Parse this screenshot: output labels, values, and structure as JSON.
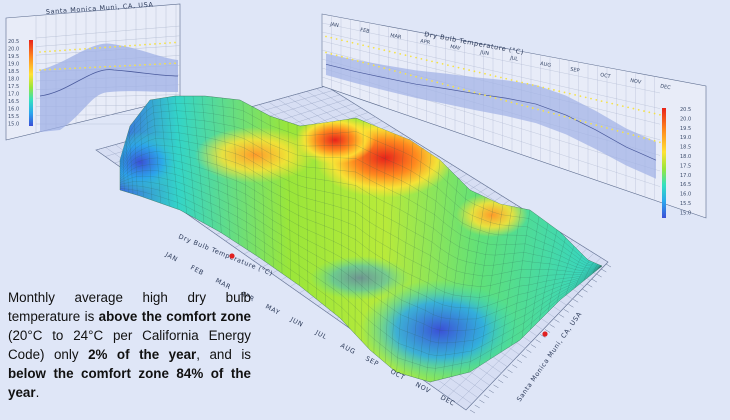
{
  "chart_data": {
    "type": "surface",
    "title": "",
    "location": "Santa Monica Muni, CA, USA",
    "axis_label": "Dry Bulb Temperature (°C)",
    "months": [
      "JAN",
      "FEB",
      "MAR",
      "APR",
      "MAY",
      "JUN",
      "JUL",
      "AUG",
      "SEP",
      "OCT",
      "NOV",
      "DEC"
    ],
    "legend_values": [
      "20.5",
      "20.0",
      "19.5",
      "19.0",
      "18.5",
      "18.0",
      "17.5",
      "17.0",
      "16.5",
      "16.0",
      "15.5",
      "15.0"
    ],
    "colorscale": [
      "#3b4fd6",
      "#2aa6ee",
      "#33e0c0",
      "#9ae63a",
      "#ffe234",
      "#ff8a1e",
      "#e8231a"
    ],
    "surface_profile": {
      "months": [
        "JAN",
        "FEB",
        "MAR",
        "APR",
        "MAY",
        "JUN",
        "JUL",
        "AUG",
        "SEP",
        "OCT",
        "NOV",
        "DEC"
      ],
      "monthly_peak_relative": [
        0.35,
        0.45,
        0.52,
        0.6,
        0.78,
        0.92,
        1.0,
        0.7,
        0.45,
        0.3,
        0.25,
        0.2
      ]
    },
    "side_panel_bands": {
      "monthly_mean_relative": [
        0.3,
        0.34,
        0.4,
        0.46,
        0.55,
        0.62,
        0.7,
        0.74,
        0.68,
        0.55,
        0.4,
        0.32
      ],
      "comfort_upper_relative": 0.9,
      "comfort_lower_relative": 0.62
    }
  },
  "caption": {
    "p1": "Monthly average high dry bulb temperature is ",
    "b1": "above the comfort zone",
    "p2": " (20°C to 24°C per California Energy Code) only ",
    "b2": "2% of the year",
    "p3": ", and is ",
    "b3": "below the comfort zone 84% of the year",
    "p4": "."
  },
  "labels": {
    "left_panel_title": "Santa Monica Muni, CA, USA",
    "right_panel_title": "Dry Bulb Temperature (°C)",
    "floor_axis_title": "Dry Bulb Temperature (°C)",
    "floor_location_title": "Santa Monica Muni, CA, USA"
  },
  "colors": {
    "background": "#dfe6f7",
    "panel_fill": "#e8ecf8",
    "band_fill": "#9fb0e6",
    "comfort_dots": "#f4e24a",
    "marker": "#e02020"
  }
}
